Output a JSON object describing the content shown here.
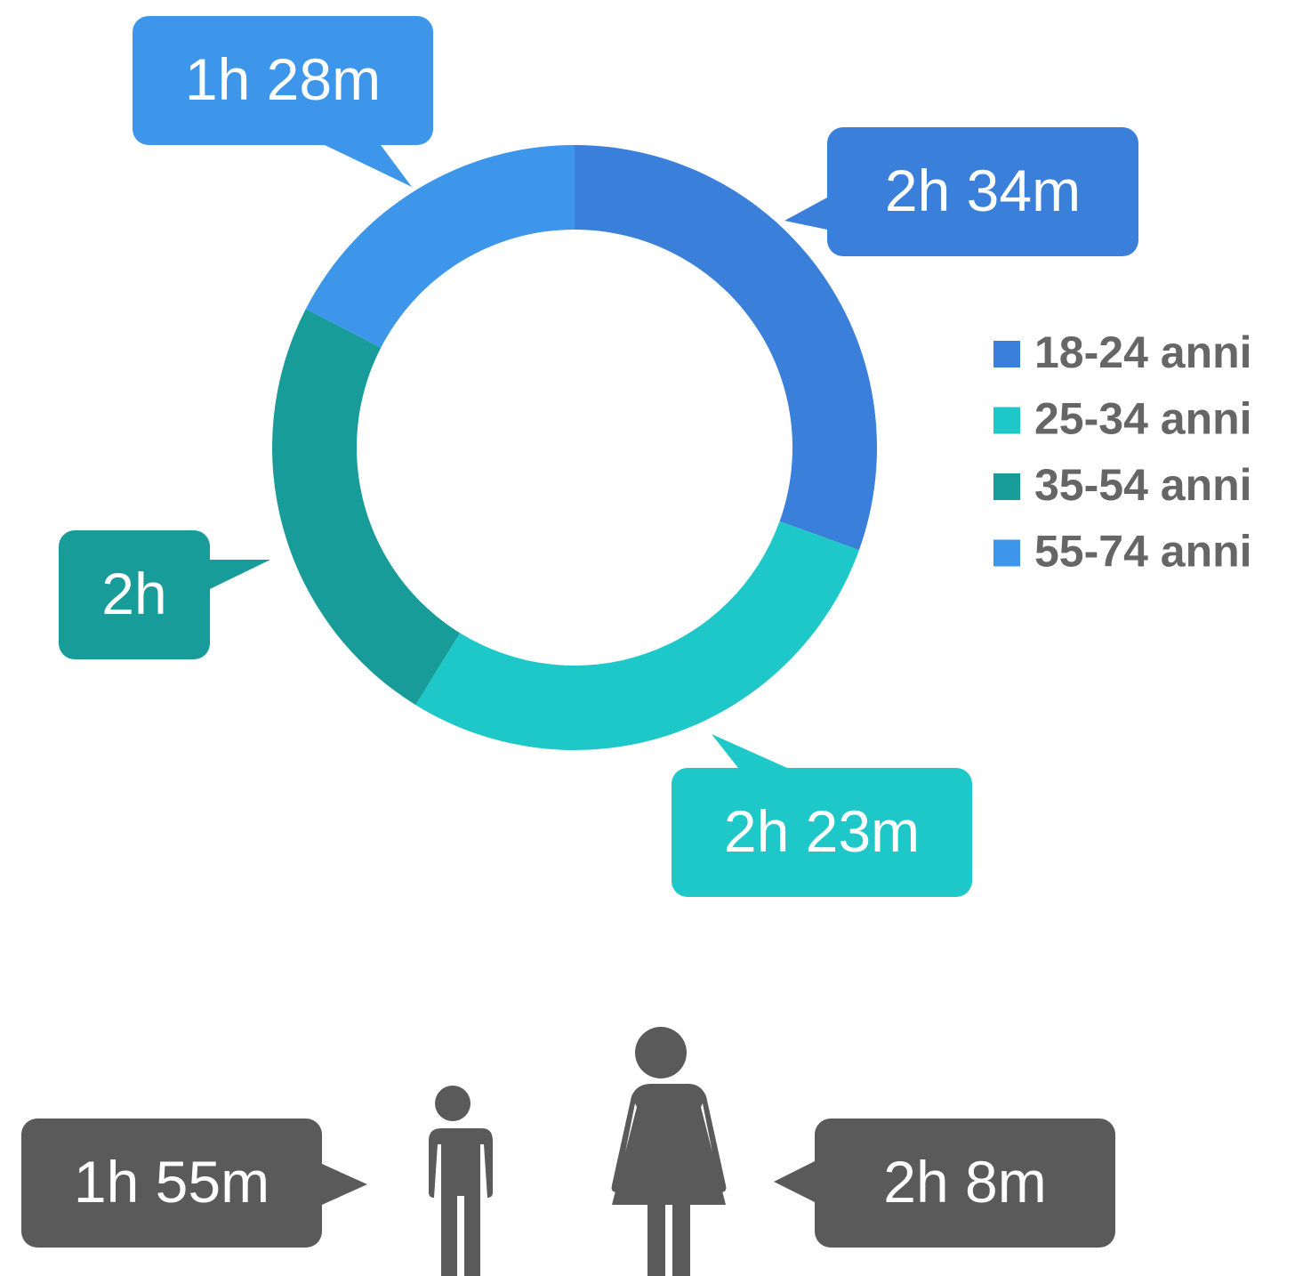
{
  "chart_data": [
    {
      "type": "pie",
      "categories": [
        "18-24 anni",
        "25-34 anni",
        "35-54 anni",
        "55-74 anni"
      ],
      "values": [
        154,
        143,
        120,
        88
      ],
      "value_labels": [
        "2h 34m",
        "2h 23m",
        "2h",
        "1h 28m"
      ],
      "colors": [
        "#3a7fd9",
        "#1ec8c8",
        "#179c9a",
        "#3d96ea"
      ],
      "legend": "right"
    },
    {
      "type": "pictogram",
      "values": [
        115,
        128
      ],
      "value_labels": [
        "1h 55m",
        "2h 8m"
      ],
      "color": "#5a5a5a"
    }
  ]
}
